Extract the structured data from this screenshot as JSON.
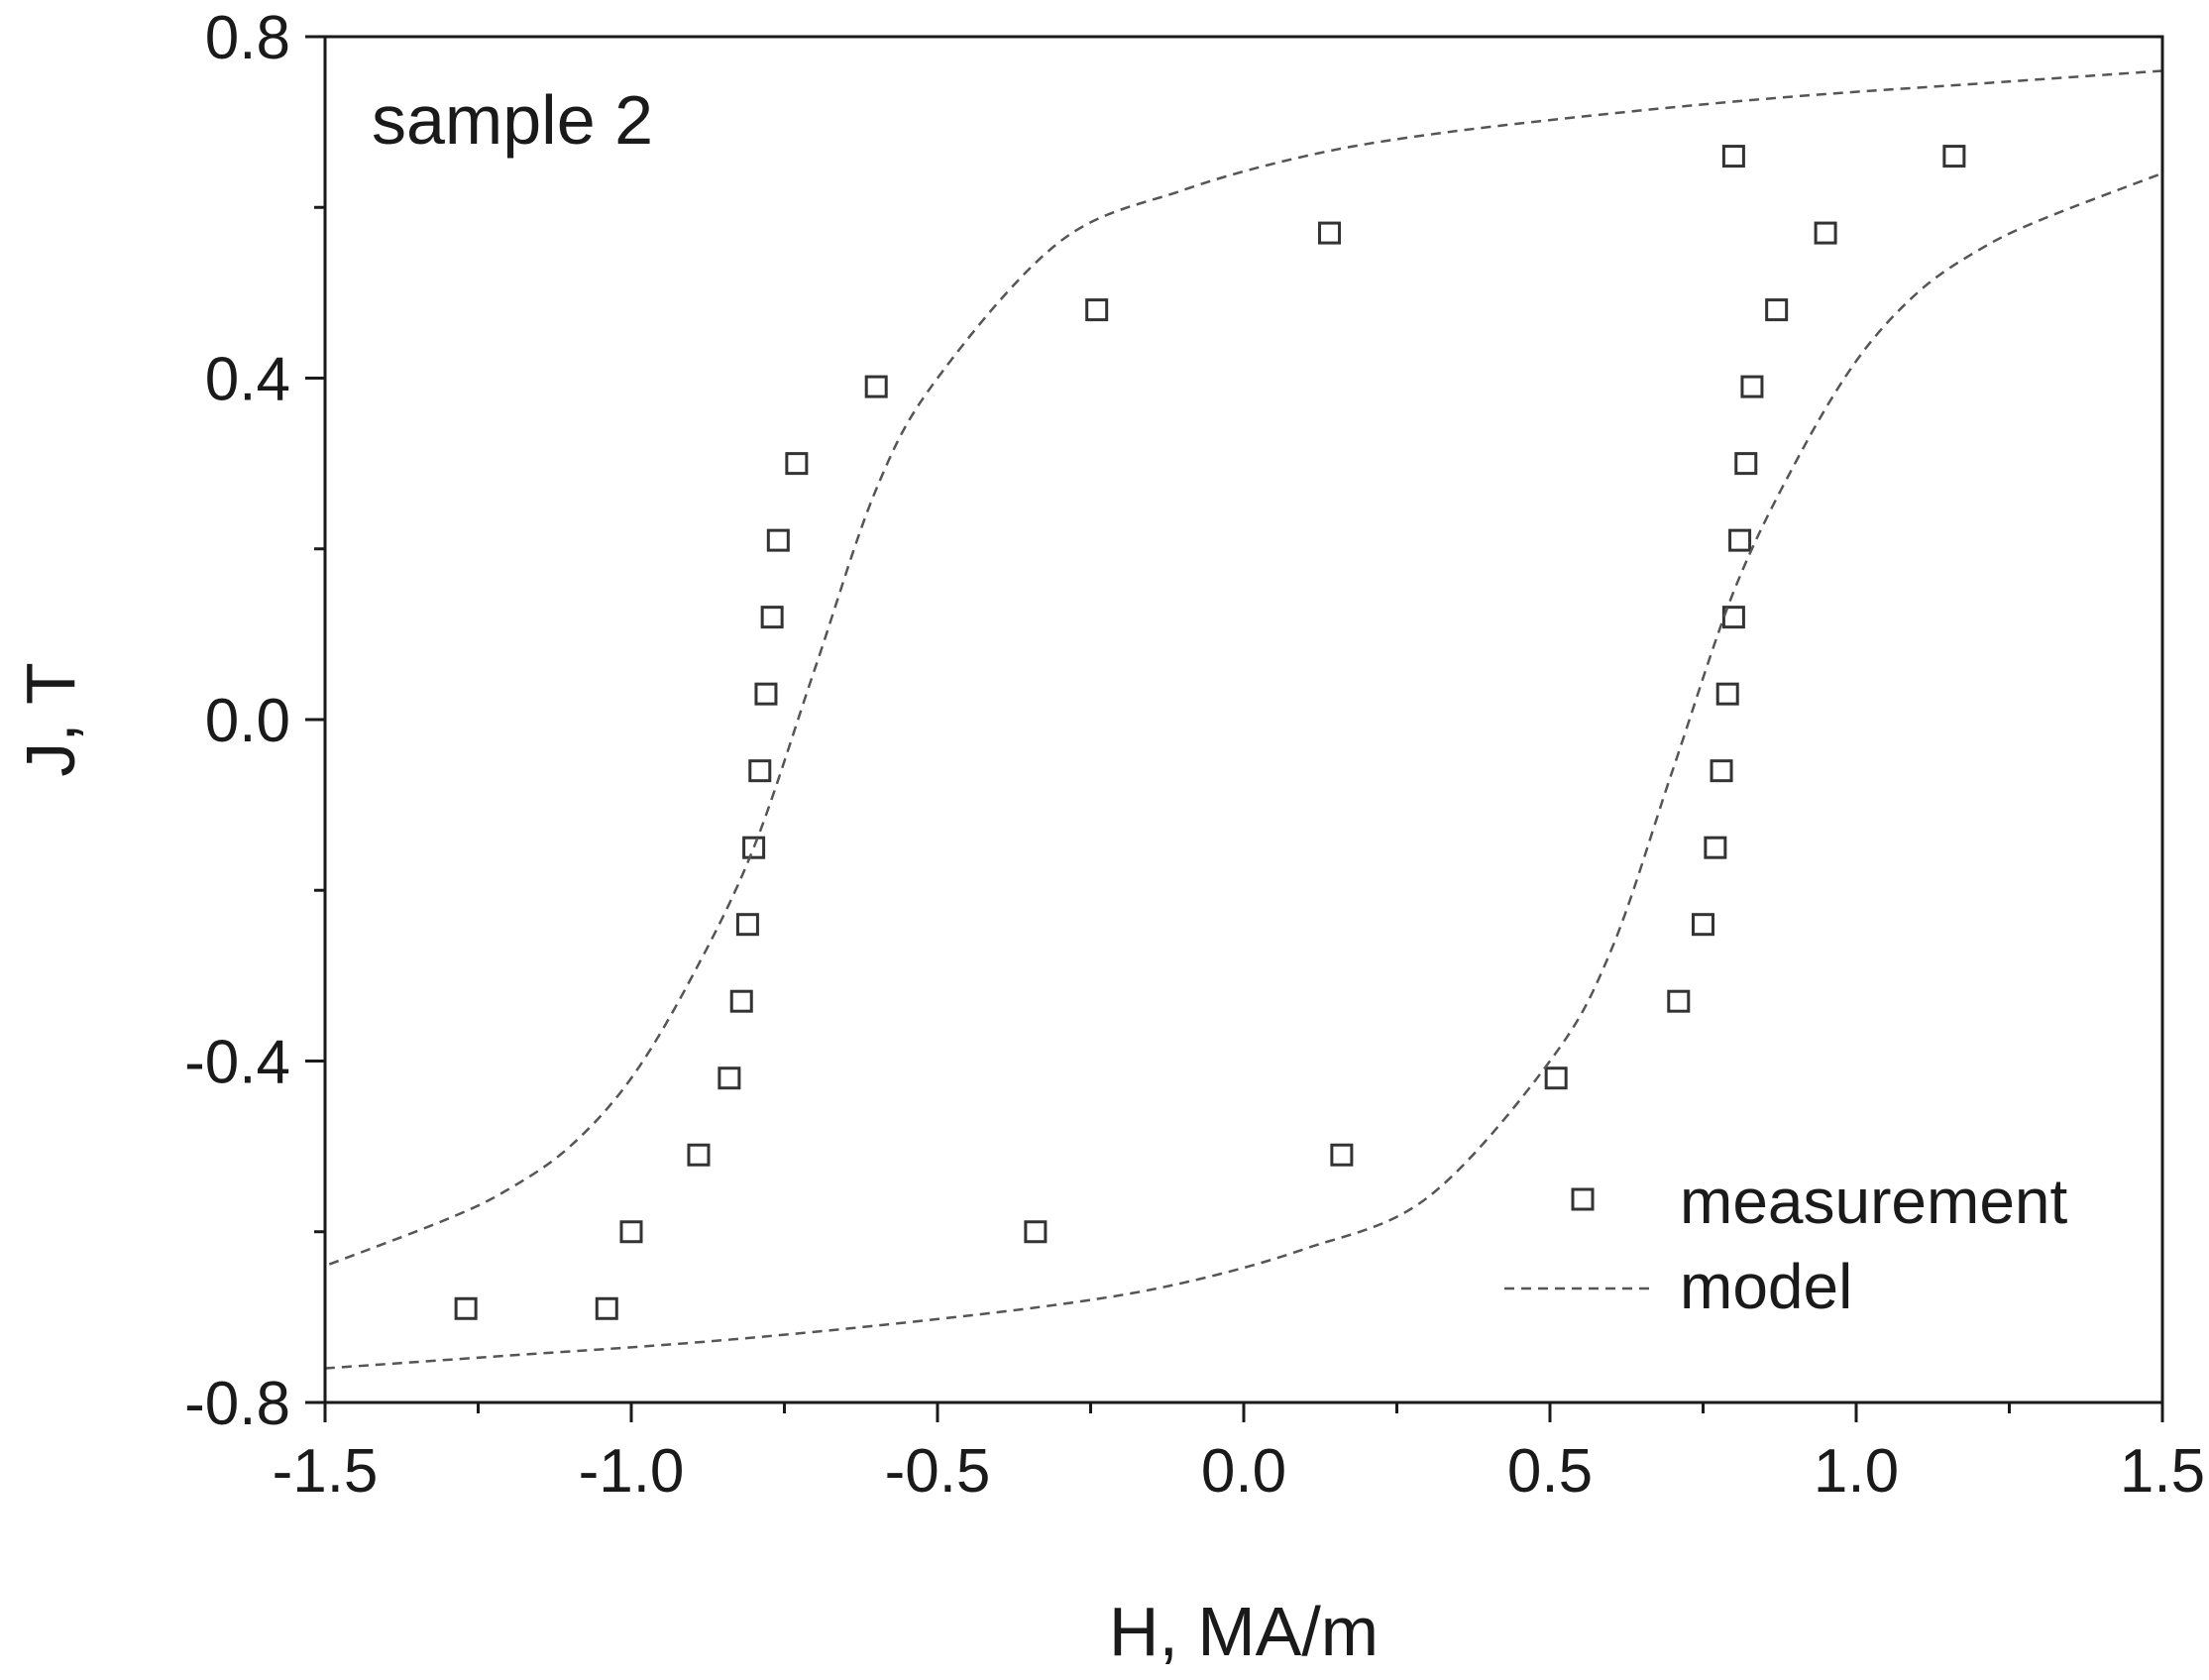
{
  "chart_data": {
    "type": "scatter",
    "title": "",
    "annotation": "sample 2",
    "xlabel": "H, MA/m",
    "ylabel": "J, T",
    "xlim": [
      -1.5,
      1.5
    ],
    "ylim": [
      -0.8,
      0.8
    ],
    "x_ticks": [
      "-1.5",
      "-1.0",
      "-0.5",
      "0.0",
      "0.5",
      "1.0",
      "1.5"
    ],
    "y_ticks": [
      "0.8",
      "0.4",
      "0.0",
      "-0.4",
      "-0.8"
    ],
    "x_tick_values": [
      -1.5,
      -1.0,
      -0.5,
      0.0,
      0.5,
      1.0,
      1.5
    ],
    "y_tick_values": [
      0.8,
      0.4,
      0.0,
      -0.4,
      -0.8
    ],
    "x_minor_ticks": [
      -1.25,
      -0.75,
      -0.25,
      0.25,
      0.75,
      1.25
    ],
    "y_minor_ticks": [
      0.6,
      0.2,
      -0.2,
      -0.6
    ],
    "grid": false,
    "legend_position": "bottom-right",
    "legend": [
      {
        "label": "measurement",
        "marker": "open-square"
      },
      {
        "label": "model",
        "marker": "dashed-line"
      }
    ],
    "series": [
      {
        "name": "measurement",
        "kind": "scatter",
        "color": "#333333",
        "x": [
          -1.27,
          -1.04,
          -1.0,
          -0.89,
          -0.84,
          -0.82,
          -0.81,
          -0.8,
          -0.79,
          -0.78,
          -0.77,
          -0.76,
          -0.73,
          -0.6,
          -0.24,
          0.14,
          0.8,
          1.16,
          0.95,
          0.87,
          0.83,
          0.82,
          0.81,
          0.8,
          0.79,
          0.78,
          0.77,
          0.75,
          0.71,
          0.51,
          0.16,
          -0.34
        ],
        "y": [
          -0.69,
          -0.69,
          -0.6,
          -0.51,
          -0.42,
          -0.33,
          -0.24,
          -0.15,
          -0.06,
          0.03,
          0.12,
          0.21,
          0.3,
          0.39,
          0.48,
          0.57,
          0.66,
          0.66,
          0.57,
          0.48,
          0.39,
          0.3,
          0.21,
          0.12,
          0.03,
          -0.06,
          -0.15,
          -0.24,
          -0.33,
          -0.42,
          -0.51,
          -0.6
        ]
      },
      {
        "name": "model (descending branch)",
        "kind": "dashed-line",
        "color": "#555555",
        "x": [
          1.5,
          1.2,
          0.9,
          0.6,
          0.3,
          0.1,
          -0.1,
          -0.3,
          -0.5,
          -0.6,
          -0.7,
          -0.8,
          -0.9,
          -1.0,
          -1.1,
          -1.2,
          -1.3,
          -1.5
        ],
        "y": [
          0.76,
          0.745,
          0.73,
          0.71,
          0.685,
          0.66,
          0.62,
          0.56,
          0.4,
          0.27,
          0.06,
          -0.15,
          -0.3,
          -0.42,
          -0.5,
          -0.55,
          -0.585,
          -0.64
        ]
      },
      {
        "name": "model (ascending branch)",
        "kind": "dashed-line",
        "color": "#555555",
        "x": [
          -1.5,
          -1.2,
          -0.9,
          -0.6,
          -0.3,
          -0.1,
          0.1,
          0.3,
          0.5,
          0.6,
          0.7,
          0.8,
          0.9,
          1.0,
          1.1,
          1.2,
          1.3,
          1.5
        ],
        "y": [
          -0.76,
          -0.745,
          -0.73,
          -0.71,
          -0.685,
          -0.66,
          -0.62,
          -0.56,
          -0.4,
          -0.27,
          -0.06,
          0.15,
          0.3,
          0.42,
          0.5,
          0.55,
          0.585,
          0.64
        ]
      }
    ]
  }
}
